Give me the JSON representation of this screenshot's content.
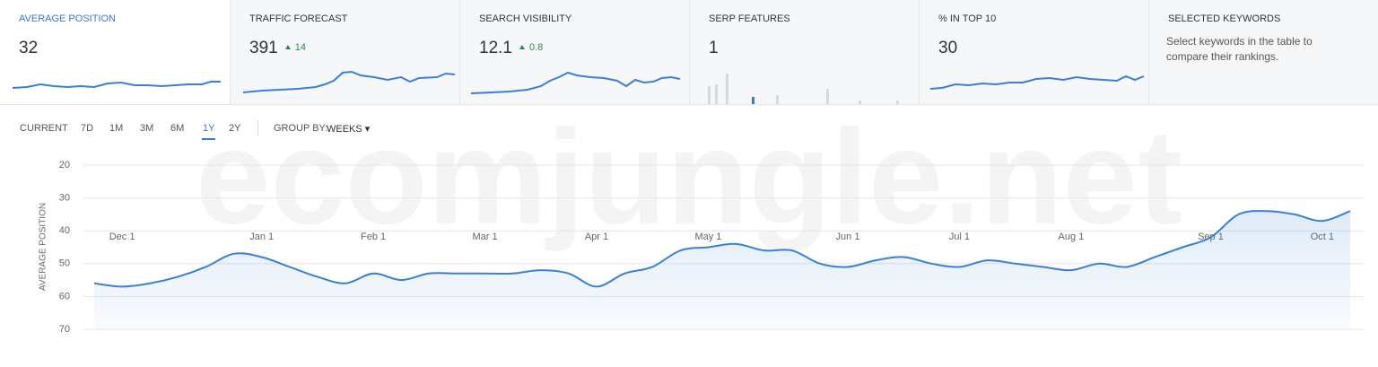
{
  "cards": [
    {
      "title": "AVERAGE POSITION",
      "value": 32
    },
    {
      "title": "TRAFFIC FORECAST",
      "value": 391,
      "delta": 14
    },
    {
      "title": "SEARCH VISIBILITY",
      "value": 12.1,
      "delta": 0.8
    },
    {
      "title": "SERP FEATURES",
      "value": 1
    },
    {
      "title": "% IN TOP 10",
      "value": 30
    },
    {
      "title": "SELECTED KEYWORDS",
      "text": "Select keywords in the table to compare their rankings."
    }
  ],
  "controls": {
    "current": "CURRENT",
    "ranges": [
      "7D",
      "1M",
      "3M",
      "6M",
      "1Y",
      "2Y"
    ],
    "active_range": "1Y",
    "group_by": "GROUP BY:",
    "group_value": "WEEKS"
  },
  "watermark": "ecomjungle.net",
  "chart_data": {
    "type": "area",
    "y_label": "AVERAGE POSITION",
    "categories": [
      null,
      "Dec 1",
      null,
      null,
      null,
      null,
      "Jan 1",
      null,
      null,
      null,
      "Feb 1",
      null,
      null,
      null,
      "Mar 1",
      null,
      null,
      null,
      "Apr 1",
      null,
      null,
      null,
      "May 1",
      null,
      null,
      null,
      null,
      "Jun 1",
      null,
      null,
      null,
      "Jul 1",
      null,
      null,
      null,
      "Aug 1",
      null,
      null,
      null,
      null,
      "Sep 1",
      null,
      null,
      null,
      "Oct 1",
      null
    ],
    "series": [
      {
        "name": "AVERAGE POSITION",
        "color": "#3a80d2",
        "values": [
          56,
          57,
          56,
          54,
          51,
          47,
          48,
          51,
          54,
          56,
          53,
          55,
          53,
          53,
          53,
          53,
          52,
          53,
          57,
          53,
          51,
          46,
          45,
          44,
          46,
          46,
          50,
          51,
          49,
          48,
          50,
          51,
          49,
          50,
          51,
          52,
          50,
          51,
          48,
          45,
          42,
          35,
          34,
          35,
          37,
          34
        ]
      }
    ],
    "ylim": [
      20,
      70
    ],
    "y_inverted": true,
    "yticks": [
      20,
      30,
      40,
      50,
      60,
      70
    ],
    "grid": true
  }
}
